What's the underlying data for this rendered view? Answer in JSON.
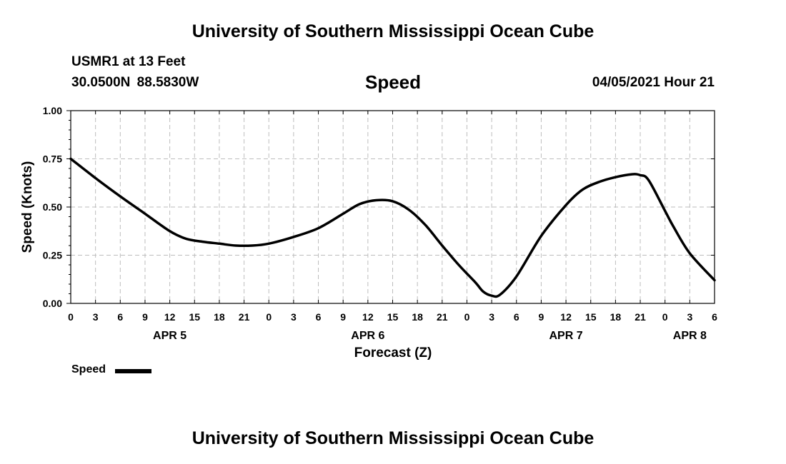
{
  "header": {
    "title": "University of Southern Mississippi Ocean Cube",
    "station": "USMR1 at 13 Feet",
    "coordinates": "30.0500N  88.5830W",
    "variable": "Speed",
    "datetime": "04/05/2021 Hour 21"
  },
  "footer": {
    "title": "University of Southern Mississippi Ocean Cube"
  },
  "legend": {
    "label": "Speed",
    "color": "#000000"
  },
  "chart_data": {
    "type": "line",
    "title": "Speed",
    "xlabel": "Forecast (Z)",
    "ylabel": "Speed (Knots)",
    "xlim": [
      0,
      78
    ],
    "ylim": [
      0,
      1
    ],
    "grid": true,
    "legend_position": "bottom-left",
    "y_ticks": [
      {
        "value": 0,
        "label": "0.00"
      },
      {
        "value": 0.25,
        "label": "0.25"
      },
      {
        "value": 0.5,
        "label": "0.50"
      },
      {
        "value": 0.75,
        "label": "0.75"
      },
      {
        "value": 1,
        "label": "1.00"
      }
    ],
    "x_ticks": [
      {
        "value": 0,
        "label": "0"
      },
      {
        "value": 3,
        "label": "3"
      },
      {
        "value": 6,
        "label": "6"
      },
      {
        "value": 9,
        "label": "9"
      },
      {
        "value": 12,
        "label": "12"
      },
      {
        "value": 15,
        "label": "15"
      },
      {
        "value": 18,
        "label": "18"
      },
      {
        "value": 21,
        "label": "21"
      },
      {
        "value": 24,
        "label": "0"
      },
      {
        "value": 27,
        "label": "3"
      },
      {
        "value": 30,
        "label": "6"
      },
      {
        "value": 33,
        "label": "9"
      },
      {
        "value": 36,
        "label": "12"
      },
      {
        "value": 39,
        "label": "15"
      },
      {
        "value": 42,
        "label": "18"
      },
      {
        "value": 45,
        "label": "21"
      },
      {
        "value": 48,
        "label": "0"
      },
      {
        "value": 51,
        "label": "3"
      },
      {
        "value": 54,
        "label": "6"
      },
      {
        "value": 57,
        "label": "9"
      },
      {
        "value": 60,
        "label": "12"
      },
      {
        "value": 63,
        "label": "15"
      },
      {
        "value": 66,
        "label": "18"
      },
      {
        "value": 69,
        "label": "21"
      },
      {
        "value": 72,
        "label": "0"
      },
      {
        "value": 75,
        "label": "3"
      },
      {
        "value": 78,
        "label": "6"
      }
    ],
    "date_labels": [
      {
        "value": 12,
        "label": "APR 5"
      },
      {
        "value": 36,
        "label": "APR 6"
      },
      {
        "value": 60,
        "label": "APR 7"
      },
      {
        "value": 75,
        "label": "APR 8"
      }
    ],
    "series": [
      {
        "name": "Speed",
        "color": "#000000",
        "x": [
          0,
          3,
          6,
          9,
          12,
          14,
          16,
          18,
          20,
          22,
          24,
          27,
          30,
          33,
          35,
          37,
          39,
          41,
          43,
          45,
          47,
          49,
          50,
          51,
          52,
          54,
          57,
          60,
          62,
          64,
          66,
          68,
          69,
          70,
          72,
          73,
          75,
          78
        ],
        "values": [
          0.75,
          0.65,
          0.555,
          0.465,
          0.375,
          0.335,
          0.32,
          0.31,
          0.3,
          0.3,
          0.31,
          0.345,
          0.39,
          0.465,
          0.515,
          0.535,
          0.53,
          0.485,
          0.405,
          0.3,
          0.2,
          0.11,
          0.06,
          0.04,
          0.045,
          0.14,
          0.35,
          0.51,
          0.59,
          0.63,
          0.655,
          0.67,
          0.665,
          0.64,
          0.48,
          0.4,
          0.26,
          0.12
        ]
      }
    ]
  }
}
